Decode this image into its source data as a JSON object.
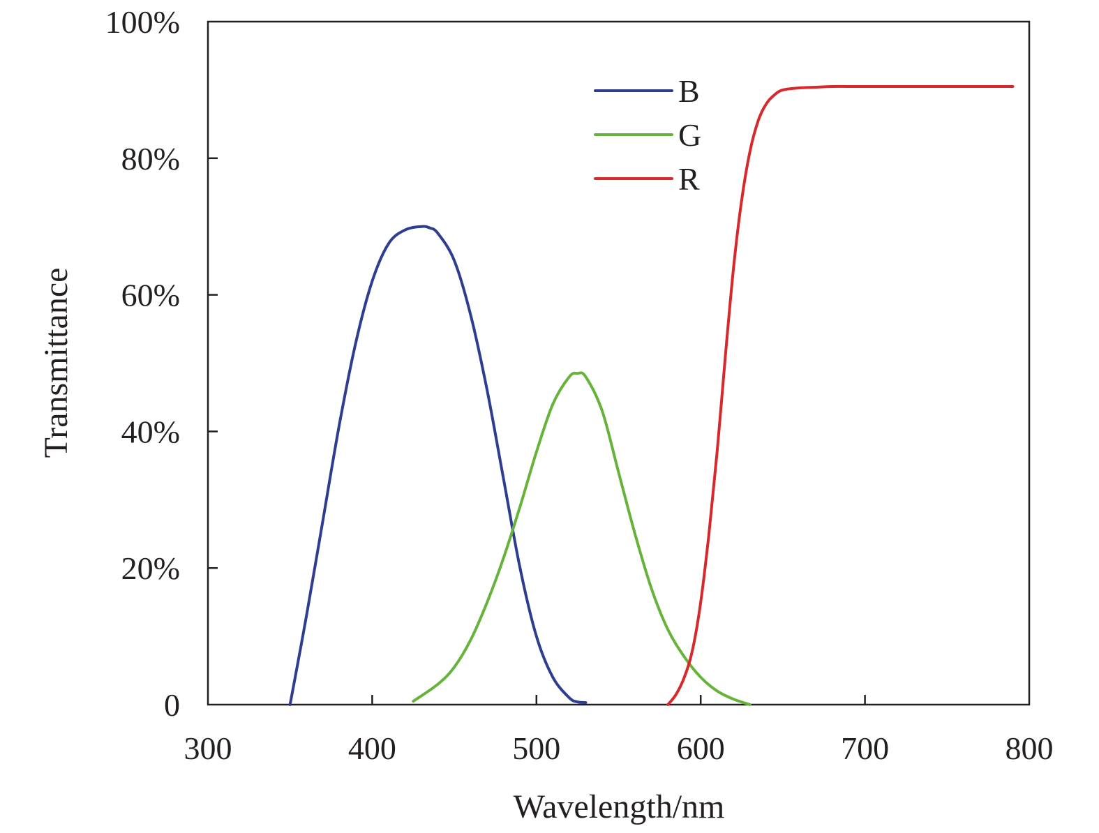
{
  "chart_data": {
    "type": "line",
    "title": "",
    "xlabel": "Wavelength/nm",
    "ylabel": "Transmittance",
    "xlim": [
      300,
      800
    ],
    "ylim": [
      0,
      100
    ],
    "x_ticks": [
      300,
      400,
      500,
      600,
      700,
      800
    ],
    "x_tick_labels": [
      "300",
      "400",
      "500",
      "600",
      "700",
      "800"
    ],
    "y_ticks": [
      0,
      20,
      40,
      60,
      80,
      100
    ],
    "y_tick_labels": [
      "0",
      "20%",
      "40%",
      "60%",
      "80%",
      "100%"
    ],
    "grid": false,
    "legend_position": "top-right",
    "series": [
      {
        "name": "B",
        "color": "#2e3d8f",
        "x": [
          350,
          360,
          370,
          380,
          390,
          400,
          410,
          420,
          430,
          435,
          440,
          450,
          460,
          470,
          480,
          490,
          500,
          510,
          520,
          525,
          530
        ],
        "y": [
          0,
          13,
          27,
          41,
          53,
          62,
          67.5,
          69.5,
          70,
          69.8,
          69,
          65,
          57,
          46,
          33,
          20,
          10,
          4,
          1,
          0.4,
          0.3
        ]
      },
      {
        "name": "G",
        "color": "#66b33b",
        "x": [
          425,
          440,
          450,
          460,
          470,
          480,
          490,
          500,
          510,
          520,
          525,
          530,
          540,
          550,
          560,
          570,
          580,
          590,
          600,
          610,
          620,
          630
        ],
        "y": [
          0.5,
          3,
          5.5,
          9.5,
          15,
          21.5,
          29,
          37,
          44,
          48,
          48.5,
          48,
          43,
          34,
          25,
          17,
          11,
          7,
          4,
          2,
          0.8,
          0
        ]
      },
      {
        "name": "R",
        "color": "#d7282c",
        "x": [
          580,
          585,
          590,
          595,
          600,
          605,
          610,
          615,
          620,
          625,
          630,
          635,
          640,
          645,
          650,
          660,
          670,
          680,
          700,
          750,
          790
        ],
        "y": [
          0,
          1.5,
          4,
          8,
          15,
          25,
          37,
          51,
          64,
          74,
          81,
          85.5,
          88,
          89.3,
          90,
          90.3,
          90.4,
          90.5,
          90.5,
          90.5,
          90.5
        ]
      }
    ]
  }
}
